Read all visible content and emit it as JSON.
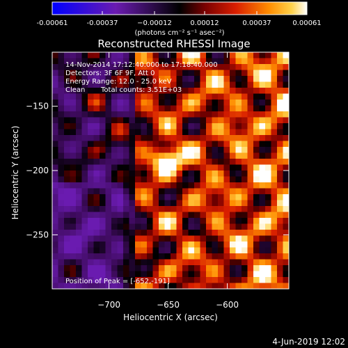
{
  "chart_data": {
    "type": "heatmap",
    "title": "Reconstructed RHESSI Image",
    "xlabel": "Heliocentric X (arcsec)",
    "ylabel": "Heliocentric Y (arcsec)",
    "xlim": [
      -748,
      -548
    ],
    "ylim": [
      -292,
      -108
    ],
    "x_ticks": [
      -700,
      -650,
      -600
    ],
    "x_tick_labels": [
      "−700",
      "−650",
      "−600"
    ],
    "y_ticks": [
      -150,
      -200,
      -250
    ],
    "y_tick_labels": [
      "−150",
      "−200",
      "−250"
    ],
    "colorbar": {
      "range": [
        -0.00061,
        0.00061
      ],
      "ticks": [
        -0.00061,
        -0.00037,
        -0.00012,
        0.00012,
        0.00037,
        0.00061
      ],
      "tick_labels": [
        "-0.00061",
        "-0.00037",
        "−0.00012",
        "0.00012",
        "0.00037",
        "0.00061"
      ],
      "unit_label": "(photons cm⁻² s⁻¹ asec⁻²)",
      "colors": [
        "#0000ff",
        "#6a1bb0",
        "#000000",
        "#7a0000",
        "#d81e00",
        "#ff8c00",
        "#ffd24a",
        "#ffffff"
      ]
    },
    "peak": [
      -652,
      -191
    ],
    "annotations": {
      "time": "14-Nov-2014 17:12:40.000 to 17:18:40.000",
      "detectors": "Detectors: 3F 6F 9F, Att 0",
      "energy": "Energy Range: 12.0 - 25.0 keV",
      "method": "Clean",
      "counts": "Total counts: 3.51E+03",
      "peak_label": "Position of Peak = [-652,-191]"
    },
    "grid": false
  },
  "footer": {
    "date": "4-Jun-2019 12:02"
  }
}
